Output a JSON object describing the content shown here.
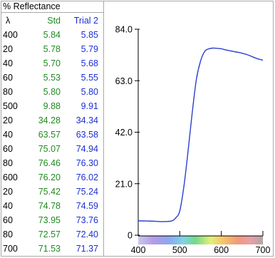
{
  "panel_title": "% Reflectance",
  "table": {
    "headers": {
      "wavelength": "λ",
      "std": "Std",
      "trial": "Trial 2"
    },
    "rows": [
      {
        "wl": "400",
        "std": "5.84",
        "trial": "5.85"
      },
      {
        "wl": "20",
        "std": "5.78",
        "trial": "5.79"
      },
      {
        "wl": "40",
        "std": "5.70",
        "trial": "5.68"
      },
      {
        "wl": "60",
        "std": "5.53",
        "trial": "5.55"
      },
      {
        "wl": "80",
        "std": "5.80",
        "trial": "5.80"
      },
      {
        "wl": "500",
        "std": "9.88",
        "trial": "9.91"
      },
      {
        "wl": "20",
        "std": "34.28",
        "trial": "34.34"
      },
      {
        "wl": "40",
        "std": "63.57",
        "trial": "63.58"
      },
      {
        "wl": "60",
        "std": "75.07",
        "trial": "74.94"
      },
      {
        "wl": "80",
        "std": "76.46",
        "trial": "76.30"
      },
      {
        "wl": "600",
        "std": "76.20",
        "trial": "76.02"
      },
      {
        "wl": "20",
        "std": "75.42",
        "trial": "75.24"
      },
      {
        "wl": "40",
        "std": "74.78",
        "trial": "74.59"
      },
      {
        "wl": "60",
        "std": "73.95",
        "trial": "73.76"
      },
      {
        "wl": "80",
        "std": "72.57",
        "trial": "72.40"
      },
      {
        "wl": "700",
        "std": "71.53",
        "trial": "71.37"
      }
    ]
  },
  "colors": {
    "std": "#1f8a1f",
    "trial": "#1a2fd6",
    "curve": "#2a3fd0",
    "border": "#a8a8a8"
  },
  "chart_data": {
    "type": "line",
    "xlim": [
      400,
      700
    ],
    "ylim": [
      0,
      84
    ],
    "x_ticks": [
      "400",
      "500",
      "600",
      "700"
    ],
    "y_ticks": [
      "0",
      "21.0",
      "42.0",
      "63.0",
      "84.0"
    ],
    "grid": false,
    "legend": "none",
    "spectrum_bar": true,
    "series": [
      {
        "x": [
          400,
          420,
          440,
          460,
          480,
          490,
          500,
          510,
          520,
          530,
          540,
          550,
          560,
          570,
          580,
          590,
          600,
          610,
          620,
          630,
          640,
          650,
          660,
          670,
          680,
          690,
          700
        ],
        "y": [
          5.85,
          5.79,
          5.68,
          5.55,
          5.8,
          7.0,
          9.91,
          20.0,
          34.34,
          50.0,
          63.58,
          71.0,
          74.94,
          76.0,
          76.3,
          76.2,
          76.02,
          75.6,
          75.24,
          74.9,
          74.59,
          74.2,
          73.76,
          73.1,
          72.4,
          71.8,
          71.37
        ]
      }
    ]
  }
}
